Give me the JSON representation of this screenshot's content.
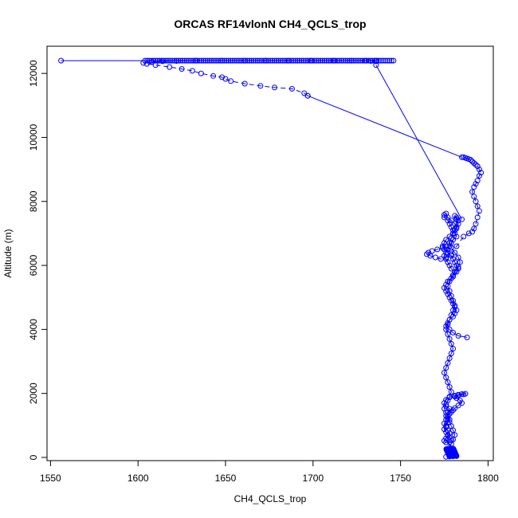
{
  "chart_data": {
    "type": "line",
    "title": "ORCAS RF14vlonN CH4_QCLS_trop",
    "xlabel": "CH4_QCLS_trop",
    "ylabel": "Altitude (m)",
    "xlim": [
      1548,
      1803
    ],
    "ylim": [
      -100,
      12850
    ],
    "xticks": [
      1550,
      1600,
      1650,
      1700,
      1750,
      1800
    ],
    "yticks": [
      0,
      2000,
      4000,
      6000,
      8000,
      10000,
      12000
    ],
    "grid": false,
    "legend": "none",
    "series_color": "#0000ff",
    "series": [
      {
        "name": "",
        "segments": [
          {
            "style": "line",
            "x": [
              1779,
              1778,
              1777,
              1778,
              1779,
              1780,
              1781,
              1780,
              1779,
              1778,
              1777,
              1776,
              1777,
              1778,
              1776,
              1775,
              1776,
              1778,
              1781,
              1783,
              1785,
              1787,
              1786,
              1783,
              1781,
              1782,
              1784,
              1785,
              1783,
              1781,
              1780,
              1779,
              1778,
              1777,
              1776,
              1775,
              1776,
              1777,
              1778,
              1777,
              1776,
              1775,
              1776,
              1778,
              1779,
              1778,
              1777,
              1776,
              1775,
              1776,
              1777,
              1778,
              1777,
              1776,
              1775,
              1776,
              1777,
              1778,
              1779,
              1778,
              1777,
              1776,
              1775,
              1776,
              1777,
              1778,
              1779,
              1780,
              1779,
              1778,
              1777,
              1776,
              1777,
              1778,
              1779,
              1780,
              1781,
              1780,
              1779,
              1778,
              1777,
              1778,
              1780,
              1781,
              1779,
              1778,
              1777,
              1776,
              1775,
              1776,
              1777,
              1778,
              1779,
              1780,
              1782,
              1781,
              1780,
              1779,
              1778,
              1777,
              1775,
              1775,
              1776,
              1777,
              1779,
              1781,
              1782,
              1781,
              1780,
              1778,
              1776,
              1775,
              1774,
              1775,
              1777,
              1779,
              1780,
              1781,
              1782,
              1783,
              1782,
              1780,
              1779,
              1777,
              1776,
              1775,
              1776,
              1777,
              1778,
              1779,
              1780,
              1781,
              1782,
              1781,
              1780,
              1778,
              1777,
              1776,
              1778,
              1780,
              1783,
              1788
            ],
            "y": [
              60,
              120,
              200,
              300,
              420,
              560,
              700,
              850,
              980,
              1100,
              1200,
              1300,
              1420,
              1520,
              1600,
              1700,
              1800,
              1880,
              1930,
              1960,
              1980,
              1990,
              1970,
              1940,
              1900,
              1850,
              1780,
              1700,
              1620,
              1540,
              1480,
              1420,
              1360,
              1280,
              1180,
              1060,
              950,
              840,
              760,
              680,
              600,
              520,
              470,
              480,
              530,
              620,
              700,
              790,
              880,
              980,
              1080,
              1180,
              1280,
              1400,
              1520,
              1650,
              1780,
              1900,
              2050,
              2200,
              2350,
              2500,
              2650,
              2800,
              2950,
              3100,
              3250,
              3400,
              3550,
              3700,
              3850,
              4000,
              4150,
              4300,
              4450,
              4600,
              4750,
              4900,
              5050,
              5200,
              5350,
              5500,
              5650,
              5800,
              5900,
              6000,
              6100,
              6200,
              6300,
              6400,
              6500,
              6600,
              6700,
              6800,
              6900,
              7000,
              7100,
              7200,
              7300,
              7400,
              7500,
              7580,
              7620,
              7500,
              7400,
              7300,
              7200,
              7100,
              7000,
              6900,
              6800,
              6700,
              6600,
              6500,
              6400,
              6300,
              6200,
              6100,
              6000,
              5900,
              5800,
              5700,
              5600,
              5500,
              5400,
              5300,
              5200,
              5100,
              5000,
              4900,
              4800,
              4700,
              4600,
              4500,
              4400,
              4300,
              4200,
              4100,
              4000,
              3900,
              3800,
              3750
            ]
          },
          {
            "style": "line",
            "x": [
              1783,
              1782,
              1781,
              1782,
              1783,
              1782,
              1780,
              1779,
              1778,
              1779,
              1781,
              1783,
              1784,
              1783,
              1781
            ],
            "y": [
              7400,
              7500,
              7550,
              7450,
              7300,
              7150,
              7000,
              6850,
              6700,
              6550,
              6400,
              6250,
              6100,
              5950,
              5800
            ]
          },
          {
            "style": "dashed",
            "x": [
              1776,
              1774,
              1771,
              1768,
              1766,
              1765,
              1767,
              1770,
              1773,
              1776,
              1779,
              1782,
              1786,
              1789,
              1791,
              1792,
              1793,
              1794,
              1795,
              1794,
              1793,
              1792,
              1791,
              1792,
              1793,
              1794,
              1795,
              1796,
              1795,
              1794,
              1793,
              1792,
              1791,
              1790,
              1789,
              1788,
              1787,
              1786
            ],
            "y": [
              6600,
              6550,
              6500,
              6450,
              6400,
              6350,
              6300,
              6250,
              6200,
              6250,
              6350,
              6600,
              6900,
              7000,
              7050,
              7150,
              7300,
              7500,
              7700,
              7850,
              8000,
              8150,
              8300,
              8450,
              8550,
              8650,
              8800,
              8900,
              9000,
              9100,
              9150,
              9200,
              9250,
              9300,
              9320,
              9340,
              9360,
              9380
            ]
          },
          {
            "style": "line",
            "x": [
              1785,
              1697
            ],
            "y": [
              9380,
              11300
            ]
          },
          {
            "style": "dashed",
            "x": [
              1697,
              1695,
              1688,
              1678,
              1670,
              1661,
              1653,
              1650,
              1648,
              1643,
              1636,
              1631,
              1625,
              1618,
              1610,
              1605,
              1603
            ],
            "y": [
              11300,
              11380,
              11520,
              11560,
              11610,
              11680,
              11760,
              11830,
              11880,
              11920,
              12000,
              12080,
              12140,
              12200,
              12260,
              12300,
              12330
            ]
          },
          {
            "style": "line",
            "x": [
              1608,
              1614,
              1622,
              1633,
              1648,
              1661,
              1673,
              1686,
              1699,
              1712,
              1722,
              1730,
              1733,
              1736
            ],
            "y": [
              12360,
              12380,
              12390,
              12400,
              12400,
              12400,
              12400,
              12400,
              12400,
              12400,
              12400,
              12400,
              12390,
              12380
            ]
          },
          {
            "style": "line",
            "x": [
              1736,
              1785
            ],
            "y": [
              12260,
              7440
            ]
          },
          {
            "style": "line",
            "x": [
              1556,
              1736
            ],
            "y": [
              12400,
              12400
            ]
          }
        ]
      }
    ],
    "dense_clusters": [
      {
        "x": [
          1604,
          1746
        ],
        "y": 12400,
        "count": 120
      },
      {
        "x": [
          1776,
          1782
        ],
        "y": [
          20,
          280
        ],
        "count": 40
      }
    ]
  }
}
